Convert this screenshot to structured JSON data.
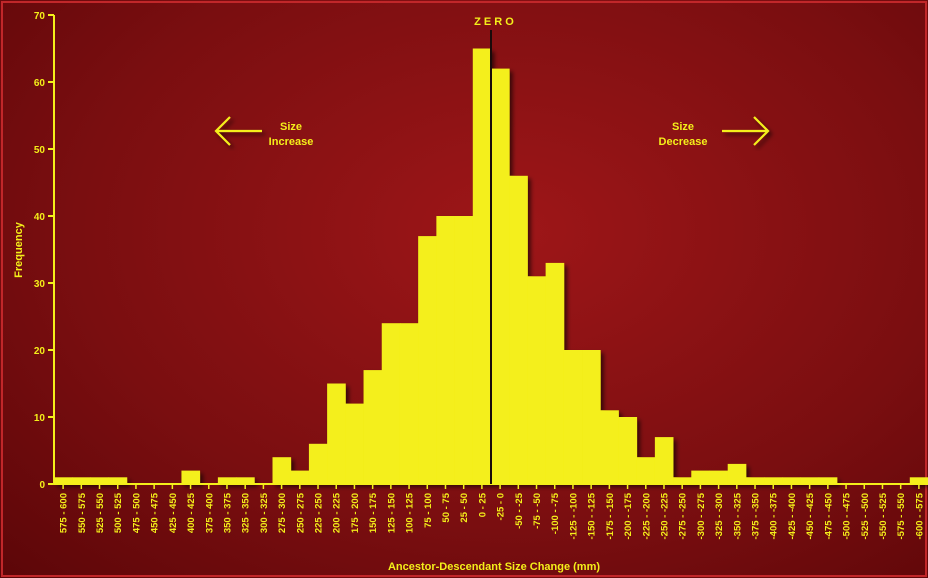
{
  "chart_data": {
    "type": "bar",
    "title": "",
    "xlabel": "Ancestor-Descendant Size Change (mm)",
    "ylabel": "Frequency",
    "ylim": [
      0,
      70
    ],
    "yticks": [
      0,
      10,
      20,
      30,
      40,
      50,
      60,
      70
    ],
    "grid": false,
    "legend": "none",
    "colors": {
      "background": "#8a1214",
      "bar": "#f4ef1a",
      "text": "#f4ef1a"
    },
    "categories": [
      "575 - 600",
      "550 - 575",
      "525 - 550",
      "500 - 525",
      "475 - 500",
      "450 - 475",
      "425 - 450",
      "400 - 425",
      "375 - 400",
      "350 - 375",
      "325 - 350",
      "300 - 325",
      "275 - 300",
      "250 - 275",
      "225 - 250",
      "200 - 225",
      "175 - 200",
      "150 - 175",
      "125 - 150",
      "100 - 125",
      "75 - 100",
      "50 - 75",
      "25 - 50",
      "0 - 25",
      "-25 - 0",
      "-50 - -25",
      "-75 - -50",
      "-100 - -75",
      "-125 - -100",
      "-150 - -125",
      "-175 - -150",
      "-200 - -175",
      "-225 - -200",
      "-250 - -225",
      "-275 - -250",
      "-300 - -275",
      "-325 - -300",
      "-350 - -325",
      "-375 - -350",
      "-400 - -375",
      "-425 - -400",
      "-450 - -425",
      "-475 - -450",
      "-500 - -475",
      "-525 - -500",
      "-550 - -525",
      "-575 - -550",
      "-600 - -575"
    ],
    "values": [
      1,
      1,
      1,
      1,
      0,
      0,
      0,
      2,
      0,
      1,
      1,
      0,
      4,
      2,
      6,
      15,
      12,
      17,
      24,
      24,
      37,
      40,
      40,
      65,
      62,
      46,
      31,
      33,
      20,
      20,
      11,
      10,
      4,
      7,
      1,
      2,
      2,
      3,
      1,
      1,
      1,
      1,
      1,
      0,
      0,
      0,
      0,
      1
    ],
    "zero_line_category": "0 - 25",
    "annotations": {
      "zero": "Z E R O",
      "left": {
        "line1": "Size",
        "line2": "Increase"
      },
      "right": {
        "line1": "Size",
        "line2": "Decrease"
      }
    }
  }
}
